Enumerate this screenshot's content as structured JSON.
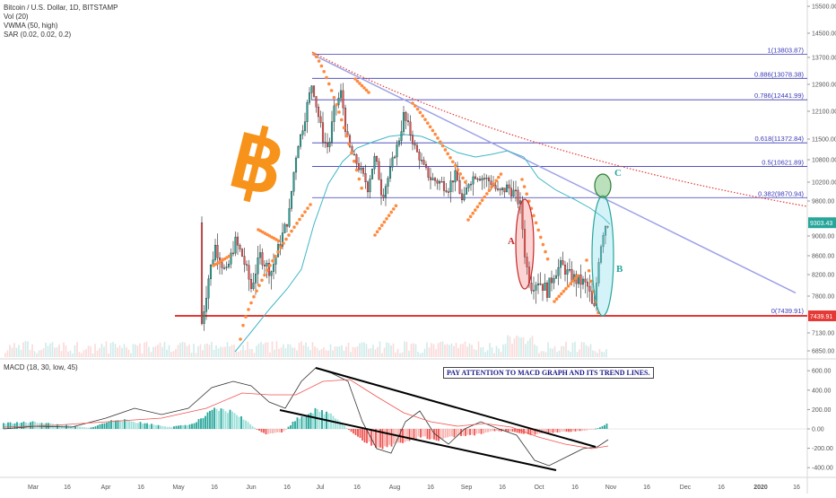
{
  "legend": {
    "symbol": "Bitcoin / U.S. Dollar, 1D, BITSTAMP",
    "vol": "Vol (20)",
    "vwma": "VWMA (50, high)",
    "sar": "SAR (0.02, 0.02, 0.2)",
    "macd": "MACD (18, 30, low, 45)"
  },
  "annotations": {
    "a": "A",
    "b": "B",
    "c": "C",
    "macd_note": "PAY ATTENTION TO MACD GRAPH AND ITS TREND LINES."
  },
  "colors": {
    "up": "#26a69a",
    "down": "#ef5350",
    "sar": "#ff8a3d",
    "vwma": "#3fb6c6",
    "fib": "#3a3ab8",
    "trend": "#9ea2e6",
    "support": "#e53935",
    "bitcoin_logo": "#f7931a"
  },
  "chart_data": [
    {
      "type": "candlestick",
      "title": "Bitcoin / U.S. Dollar, 1D, BITSTAMP",
      "ylim": [
        6500,
        15600
      ],
      "y_ticks": [
        "15500.00",
        "14500.00",
        "13700.00",
        "12900.00",
        "12100.00",
        "11500.00",
        "10800.00",
        "10200.00",
        "9800.00",
        "9000.00",
        "8600.00",
        "8200.00",
        "7800.00",
        "7130.00",
        "6850.00"
      ],
      "x_ticks": [
        "Mar",
        "16",
        "Apr",
        "16",
        "May",
        "16",
        "Jun",
        "16",
        "Jul",
        "16",
        "Aug",
        "16",
        "Sep",
        "16",
        "Oct",
        "16",
        "Nov",
        "16",
        "Dec",
        "16",
        "2020",
        "16"
      ],
      "price_labels": [
        "9303.43",
        "7439.91"
      ],
      "fib_levels": [
        {
          "label": "1(13803.87)",
          "value": 13803.87
        },
        {
          "label": "0.886(13078.38)",
          "value": 13078.38
        },
        {
          "label": "0.786(12441.99)",
          "value": 12441.99
        },
        {
          "label": "0.618(11372.84)",
          "value": 11372.84
        },
        {
          "label": "0.5(10621.89)",
          "value": 10621.89
        },
        {
          "label": "0.382(9870.94)",
          "value": 9870.94
        },
        {
          "label": "0(7439.91)",
          "value": 7439.91
        }
      ],
      "series": [
        {
          "name": "Vol (20)"
        },
        {
          "name": "VWMA (50, high)"
        },
        {
          "name": "SAR (0.02, 0.02, 0.2)"
        }
      ]
    },
    {
      "type": "line",
      "title": "MACD (18, 30, low, 45)",
      "ylim": [
        -500,
        700
      ],
      "y_ticks": [
        "600.00",
        "400.00",
        "200.00",
        "0.00",
        "-200.00",
        "-400.00"
      ]
    }
  ]
}
